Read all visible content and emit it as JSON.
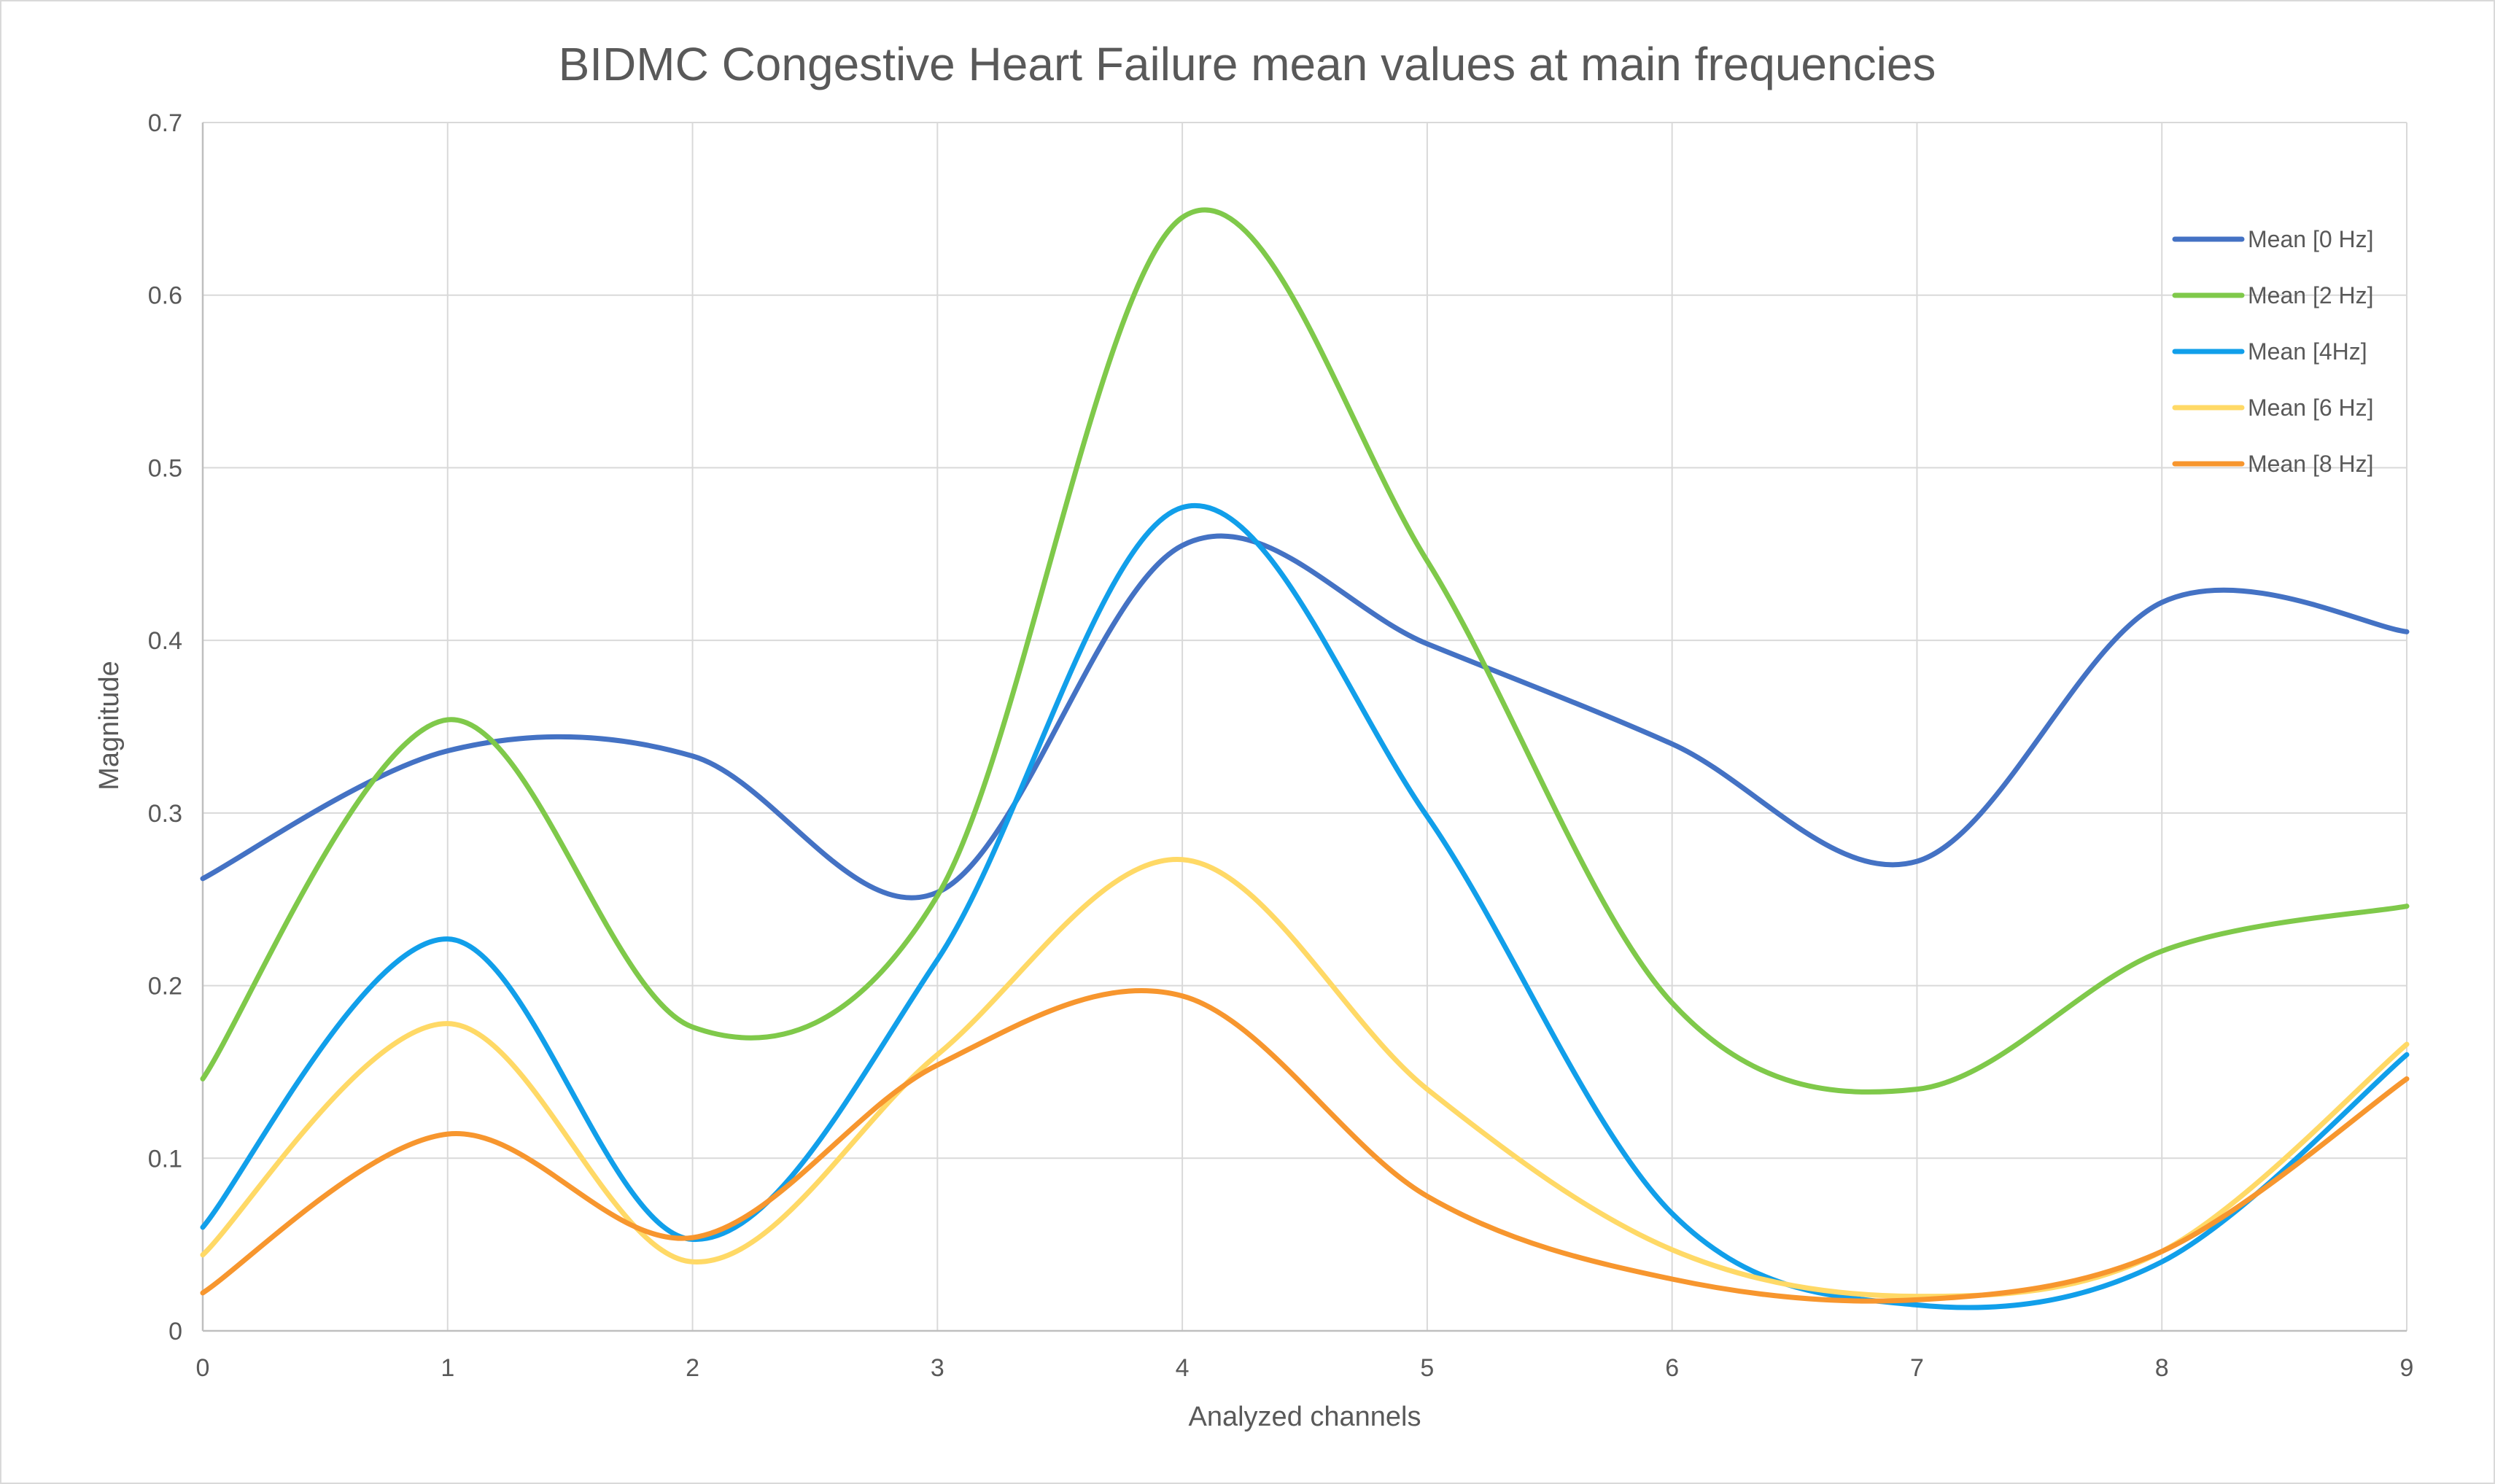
{
  "chart_data": {
    "type": "line",
    "title": "BIDMC Congestive Heart Failure mean values at main frequencies",
    "xlabel": "Analyzed channels",
    "ylabel": "Magnitude",
    "x": [
      0,
      1,
      2,
      3,
      4,
      5,
      6,
      7,
      8,
      9
    ],
    "xlim": [
      0,
      9
    ],
    "ylim": [
      0,
      0.7
    ],
    "x_ticks": [
      "0",
      "1",
      "2",
      "3",
      "4",
      "5",
      "6",
      "7",
      "8",
      "9"
    ],
    "y_ticks": [
      "0",
      "0.1",
      "0.2",
      "0.3",
      "0.4",
      "0.5",
      "0.6",
      "0.7"
    ],
    "grid": true,
    "smooth": true,
    "legend_position": "top-right",
    "series": [
      {
        "name": "Mean [0 Hz]",
        "color": "#4472C4",
        "values": [
          0.262,
          0.336,
          0.333,
          0.254,
          0.455,
          0.398,
          0.34,
          0.272,
          0.422,
          0.405
        ]
      },
      {
        "name": "Mean [2 Hz]",
        "color": "#7FC94A",
        "values": [
          0.146,
          0.354,
          0.176,
          0.252,
          0.645,
          0.446,
          0.19,
          0.14,
          0.22,
          0.246
        ]
      },
      {
        "name": "Mean [4Hz]",
        "color": "#119FEA",
        "values": [
          0.06,
          0.227,
          0.053,
          0.215,
          0.477,
          0.298,
          0.068,
          0.015,
          0.04,
          0.16
        ]
      },
      {
        "name": "Mean [6 Hz]",
        "color": "#FFD966",
        "values": [
          0.044,
          0.178,
          0.04,
          0.16,
          0.273,
          0.14,
          0.047,
          0.02,
          0.046,
          0.166
        ]
      },
      {
        "name": "Mean [8 Hz]",
        "color": "#F7962E",
        "values": [
          0.022,
          0.114,
          0.054,
          0.154,
          0.194,
          0.078,
          0.03,
          0.018,
          0.046,
          0.146
        ]
      }
    ]
  }
}
